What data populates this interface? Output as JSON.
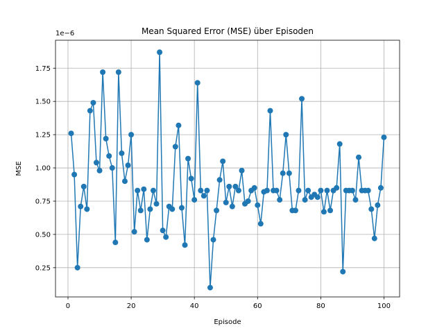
{
  "chart_data": {
    "type": "line",
    "title": "Mean Squared Error (MSE) über Episoden",
    "xlabel": "Episode",
    "ylabel": "MSE",
    "y_offset_label": "1e−6",
    "xlim": [
      -3.95,
      104.95
    ],
    "ylim": [
      0.03,
      1.96
    ],
    "x_ticks": [
      0,
      20,
      40,
      60,
      80,
      100
    ],
    "y_ticks": [
      0.25,
      0.5,
      0.75,
      1.0,
      1.25,
      1.5,
      1.75
    ],
    "y_tick_labels": [
      "0.25",
      "0.50",
      "0.75",
      "1.00",
      "1.25",
      "1.50",
      "1.75"
    ],
    "grid": true,
    "marker": "circle",
    "series_color": "#1f77b4",
    "x": [
      1,
      2,
      3,
      4,
      5,
      6,
      7,
      8,
      9,
      10,
      11,
      12,
      13,
      14,
      15,
      16,
      17,
      18,
      19,
      20,
      21,
      22,
      23,
      24,
      25,
      26,
      27,
      28,
      29,
      30,
      31,
      32,
      33,
      34,
      35,
      36,
      37,
      38,
      39,
      40,
      41,
      42,
      43,
      44,
      45,
      46,
      47,
      48,
      49,
      50,
      51,
      52,
      53,
      54,
      55,
      56,
      57,
      58,
      59,
      60,
      61,
      62,
      63,
      64,
      65,
      66,
      67,
      68,
      69,
      70,
      71,
      72,
      73,
      74,
      75,
      76,
      77,
      78,
      79,
      80,
      81,
      82,
      83,
      84,
      85,
      86,
      87,
      88,
      89,
      90,
      91,
      92,
      93,
      94,
      95,
      96,
      97,
      98,
      99,
      100
    ],
    "y": [
      1.26,
      0.95,
      0.25,
      0.71,
      0.86,
      0.69,
      1.43,
      1.49,
      1.04,
      0.98,
      1.72,
      1.22,
      1.09,
      1.0,
      0.44,
      1.72,
      1.11,
      0.9,
      1.02,
      1.25,
      0.52,
      0.83,
      0.68,
      0.84,
      0.46,
      0.69,
      0.83,
      0.73,
      1.87,
      0.53,
      0.48,
      0.71,
      0.69,
      1.16,
      1.32,
      0.7,
      0.42,
      1.07,
      0.92,
      0.76,
      1.64,
      0.83,
      0.79,
      0.83,
      0.1,
      0.46,
      0.68,
      0.91,
      1.05,
      0.74,
      0.86,
      0.71,
      0.86,
      0.83,
      0.98,
      0.73,
      0.75,
      0.83,
      0.85,
      0.72,
      0.58,
      0.82,
      0.83,
      1.43,
      0.83,
      0.83,
      0.76,
      0.96,
      1.25,
      0.96,
      0.68,
      0.68,
      0.83,
      1.52,
      0.76,
      0.83,
      0.78,
      0.8,
      0.78,
      0.83,
      0.67,
      0.83,
      0.68,
      0.83,
      0.85,
      1.18,
      0.22,
      0.83,
      0.83,
      0.83,
      0.76,
      1.08,
      0.83,
      0.83,
      0.83,
      0.69,
      0.47,
      0.72,
      0.85,
      1.23
    ]
  }
}
